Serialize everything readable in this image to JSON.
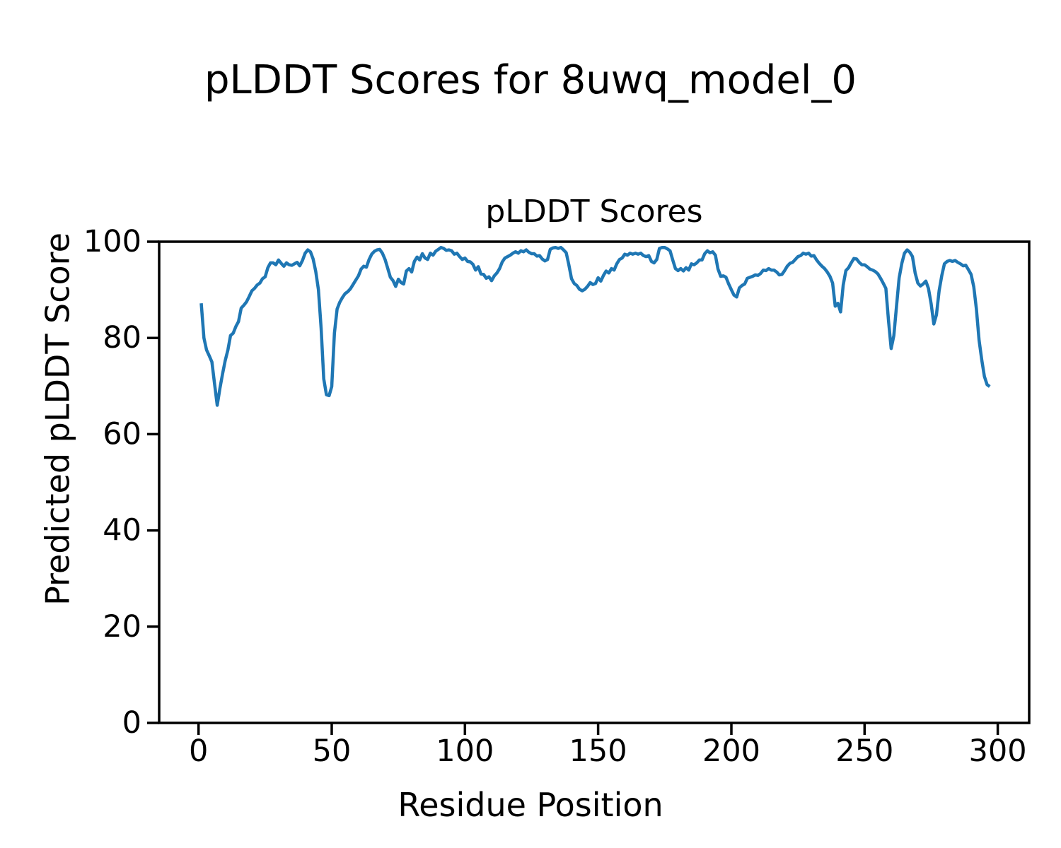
{
  "chart_data": {
    "type": "line",
    "suptitle": "pLDDT Scores for 8uwq_model_0",
    "title": "pLDDT Scores",
    "xlabel": "Residue Position",
    "ylabel": "Predicted pLDDT Score",
    "x_ticks": [
      0,
      50,
      100,
      150,
      200,
      250,
      300
    ],
    "y_ticks": [
      0,
      20,
      40,
      60,
      80,
      100
    ],
    "xlim": [
      -14.8,
      311.8
    ],
    "ylim": [
      0,
      100
    ],
    "grid": false,
    "legend": false,
    "background": "#ffffff",
    "axis_color": "#000000",
    "line": {
      "color": "#1f77b4",
      "width": 4.5
    },
    "series": [
      {
        "name": "pLDDT",
        "x_start": 1,
        "x_step": 1,
        "values": [
          87.2,
          80.0,
          77.5,
          76.3,
          75.0,
          70.5,
          66.0,
          69.5,
          72.5,
          75.3,
          77.5,
          80.5,
          81.0,
          82.4,
          83.4,
          86.2,
          86.8,
          87.5,
          88.6,
          89.8,
          90.3,
          91.0,
          91.4,
          92.3,
          92.7,
          94.6,
          95.6,
          95.6,
          95.2,
          96.2,
          95.5,
          94.9,
          95.6,
          95.2,
          95.1,
          95.4,
          95.7,
          95.0,
          96.1,
          97.6,
          98.3,
          97.9,
          96.4,
          93.8,
          90.0,
          82.0,
          71.5,
          68.2,
          68.0,
          69.9,
          81.0,
          86.0,
          87.4,
          88.4,
          89.2,
          89.6,
          90.2,
          91.1,
          92.0,
          92.9,
          94.3,
          94.9,
          94.7,
          96.3,
          97.4,
          98.0,
          98.3,
          98.4,
          97.6,
          96.3,
          94.5,
          92.6,
          91.9,
          90.7,
          92.2,
          91.5,
          91.2,
          93.9,
          94.4,
          93.7,
          95.9,
          96.8,
          96.2,
          97.5,
          96.6,
          96.3,
          97.6,
          97.2,
          98.0,
          98.4,
          98.8,
          98.6,
          98.2,
          98.3,
          98.1,
          97.4,
          97.6,
          96.9,
          96.3,
          96.6,
          95.9,
          95.8,
          95.3,
          94.1,
          94.8,
          93.3,
          93.2,
          92.4,
          92.7,
          91.9,
          92.9,
          93.5,
          94.4,
          95.8,
          96.6,
          96.9,
          97.2,
          97.6,
          97.9,
          97.6,
          98.1,
          97.9,
          98.3,
          97.8,
          97.5,
          97.5,
          97.0,
          97.1,
          96.4,
          96.0,
          96.3,
          98.4,
          98.7,
          98.8,
          98.6,
          98.8,
          98.3,
          97.7,
          95.2,
          92.3,
          91.3,
          90.9,
          90.1,
          89.8,
          90.1,
          90.7,
          91.5,
          91.1,
          91.3,
          92.5,
          91.8,
          93.0,
          93.9,
          93.5,
          94.4,
          94.1,
          95.4,
          96.3,
          96.6,
          97.4,
          97.2,
          97.6,
          97.4,
          97.6,
          97.4,
          97.6,
          97.1,
          96.9,
          97.1,
          95.9,
          95.6,
          96.3,
          98.6,
          98.8,
          98.8,
          98.5,
          98.1,
          96.2,
          94.4,
          94.0,
          94.4,
          93.9,
          94.6,
          94.1,
          95.4,
          95.2,
          95.6,
          96.2,
          96.2,
          97.5,
          98.1,
          97.7,
          97.9,
          97.2,
          94.3,
          92.8,
          92.9,
          92.6,
          91.2,
          90.0,
          88.9,
          88.5,
          90.4,
          90.9,
          91.2,
          92.4,
          92.6,
          92.8,
          93.1,
          93.0,
          93.4,
          94.1,
          94.0,
          94.4,
          94.1,
          94.1,
          93.7,
          93.1,
          93.2,
          94.0,
          94.9,
          95.5,
          95.7,
          96.3,
          96.9,
          97.1,
          97.6,
          97.4,
          97.6,
          97.0,
          97.1,
          96.2,
          95.5,
          94.9,
          94.4,
          93.7,
          92.8,
          91.4,
          86.6,
          87.2,
          85.4,
          91.0,
          94.0,
          94.6,
          95.6,
          96.5,
          96.4,
          95.7,
          95.2,
          95.2,
          94.8,
          94.3,
          94.1,
          93.8,
          93.3,
          92.4,
          91.4,
          90.3,
          83.5,
          77.8,
          80.5,
          86.5,
          92.5,
          95.5,
          97.6,
          98.3,
          97.8,
          96.9,
          93.5,
          91.4,
          90.8,
          91.2,
          91.8,
          90.3,
          87.1,
          82.9,
          84.8,
          89.8,
          93.0,
          95.4,
          95.9,
          96.1,
          95.9,
          96.1,
          95.7,
          95.4,
          95.0,
          95.1,
          94.2,
          93.2,
          90.6,
          86.0,
          79.5,
          75.4,
          72.0,
          70.3,
          69.9
        ]
      }
    ]
  }
}
